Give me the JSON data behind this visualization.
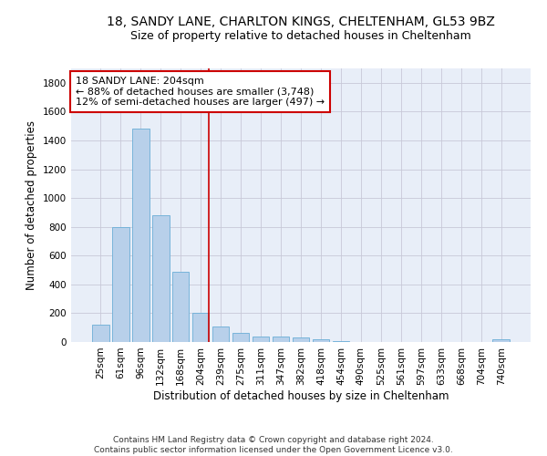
{
  "title_line1": "18, SANDY LANE, CHARLTON KINGS, CHELTENHAM, GL53 9BZ",
  "title_line2": "Size of property relative to detached houses in Cheltenham",
  "xlabel": "Distribution of detached houses by size in Cheltenham",
  "ylabel": "Number of detached properties",
  "footer_line1": "Contains HM Land Registry data © Crown copyright and database right 2024.",
  "footer_line2": "Contains public sector information licensed under the Open Government Licence v3.0.",
  "categories": [
    "25sqm",
    "61sqm",
    "96sqm",
    "132sqm",
    "168sqm",
    "204sqm",
    "239sqm",
    "275sqm",
    "311sqm",
    "347sqm",
    "382sqm",
    "418sqm",
    "454sqm",
    "490sqm",
    "525sqm",
    "561sqm",
    "597sqm",
    "633sqm",
    "668sqm",
    "704sqm",
    "740sqm"
  ],
  "values": [
    120,
    800,
    1480,
    880,
    490,
    205,
    105,
    65,
    40,
    35,
    30,
    20,
    5,
    0,
    0,
    0,
    0,
    0,
    0,
    0,
    20
  ],
  "bar_color": "#b8d0ea",
  "bar_edge_color": "#6aaed6",
  "highlight_index": 5,
  "highlight_line_color": "#cc0000",
  "annotation_text": "18 SANDY LANE: 204sqm\n← 88% of detached houses are smaller (3,748)\n12% of semi-detached houses are larger (497) →",
  "annotation_box_color": "#ffffff",
  "annotation_box_edge_color": "#cc0000",
  "ylim": [
    0,
    1900
  ],
  "yticks": [
    0,
    200,
    400,
    600,
    800,
    1000,
    1200,
    1400,
    1600,
    1800
  ],
  "background_color": "#ffffff",
  "plot_bg_color": "#e8eef8",
  "grid_color": "#c8c8d8",
  "title_fontsize": 10,
  "subtitle_fontsize": 9,
  "axis_label_fontsize": 8.5,
  "tick_fontsize": 7.5,
  "annotation_fontsize": 8,
  "footer_fontsize": 6.5
}
